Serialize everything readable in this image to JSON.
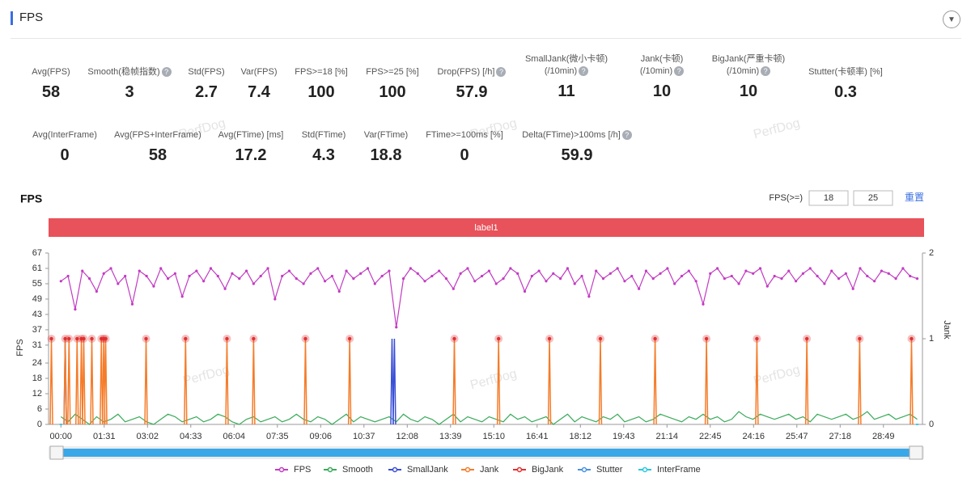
{
  "header": {
    "title": "FPS"
  },
  "watermark": "PerfDog",
  "metrics": [
    [
      {
        "label": "Avg(FPS)",
        "value": 58
      },
      {
        "label": "Smooth(稳帧指数)",
        "value": 3,
        "help": true
      },
      {
        "label": "Std(FPS)",
        "value": 2.7
      },
      {
        "label": "Var(FPS)",
        "value": 7.4
      },
      {
        "label": "FPS>=18 [%]",
        "value": 100
      },
      {
        "label": "FPS>=25 [%]",
        "value": 100
      },
      {
        "label": "Drop(FPS) [/h]",
        "value": 57.9,
        "help": true
      },
      {
        "label": "SmallJank(微小卡顿)\n(/10min)",
        "value": 11,
        "help": true
      },
      {
        "label": "Jank(卡顿)\n(/10min)",
        "value": 10,
        "help": true
      },
      {
        "label": "BigJank(严重卡顿)\n(/10min)",
        "value": 10,
        "help": true
      },
      {
        "label": "Stutter(卡顿率) [%]",
        "value": 0.3
      }
    ],
    [
      {
        "label": "Avg(InterFrame)",
        "value": 0
      },
      {
        "label": "Avg(FPS+InterFrame)",
        "value": 58
      },
      {
        "label": "Avg(FTime) [ms]",
        "value": 17.2
      },
      {
        "label": "Std(FTime)",
        "value": 4.3
      },
      {
        "label": "Var(FTime)",
        "value": 18.8
      },
      {
        "label": "FTime>=100ms [%]",
        "value": 0
      },
      {
        "label": "Delta(FTime)>100ms [/h]",
        "value": 59.9,
        "help": true
      }
    ]
  ],
  "chart_data": {
    "type": "line",
    "title": "FPS",
    "threshold_label": "FPS(>=)",
    "thresholds": [
      18,
      25
    ],
    "reset": "重置",
    "band_label": "label1",
    "y_label": "FPS",
    "y2_label": "Jank",
    "xlim": [
      -26,
      1811
    ],
    "xticks": [
      {
        "value": 0,
        "label": "00:00"
      },
      {
        "value": 91,
        "label": "01:31"
      },
      {
        "value": 182,
        "label": "03:02"
      },
      {
        "value": 273,
        "label": "04:33"
      },
      {
        "value": 364,
        "label": "06:04"
      },
      {
        "value": 455,
        "label": "07:35"
      },
      {
        "value": 546,
        "label": "09:06"
      },
      {
        "value": 637,
        "label": "10:37"
      },
      {
        "value": 728,
        "label": "12:08"
      },
      {
        "value": 819,
        "label": "13:39"
      },
      {
        "value": 910,
        "label": "15:10"
      },
      {
        "value": 1001,
        "label": "16:41"
      },
      {
        "value": 1092,
        "label": "18:12"
      },
      {
        "value": 1183,
        "label": "19:43"
      },
      {
        "value": 1274,
        "label": "21:14"
      },
      {
        "value": 1365,
        "label": "22:45"
      },
      {
        "value": 1456,
        "label": "24:16"
      },
      {
        "value": 1547,
        "label": "25:47"
      },
      {
        "value": 1638,
        "label": "27:18"
      },
      {
        "value": 1729,
        "label": "28:49"
      }
    ],
    "ylim": [
      0,
      67
    ],
    "yticks": [
      0,
      6,
      12,
      18,
      24,
      31,
      37,
      43,
      49,
      55,
      61,
      67
    ],
    "y2lim": [
      0,
      2
    ],
    "y2ticks": [
      0,
      1,
      2
    ],
    "x": [
      0,
      15,
      30,
      45,
      60,
      75,
      90,
      105,
      120,
      135,
      150,
      165,
      180,
      195,
      210,
      225,
      240,
      255,
      270,
      285,
      300,
      315,
      330,
      345,
      360,
      375,
      390,
      405,
      420,
      435,
      450,
      465,
      480,
      495,
      510,
      525,
      540,
      555,
      570,
      585,
      600,
      615,
      630,
      645,
      660,
      675,
      690,
      705,
      720,
      735,
      750,
      765,
      780,
      795,
      810,
      825,
      840,
      855,
      870,
      885,
      900,
      915,
      930,
      945,
      960,
      975,
      990,
      1005,
      1020,
      1035,
      1050,
      1065,
      1080,
      1095,
      1110,
      1125,
      1140,
      1155,
      1170,
      1185,
      1200,
      1215,
      1230,
      1245,
      1260,
      1275,
      1290,
      1305,
      1320,
      1335,
      1350,
      1365,
      1380,
      1395,
      1410,
      1425,
      1440,
      1455,
      1470,
      1485,
      1500,
      1515,
      1530,
      1545,
      1560,
      1575,
      1590,
      1605,
      1620,
      1635,
      1650,
      1665,
      1680,
      1695,
      1710,
      1725,
      1740,
      1755,
      1770,
      1785,
      1800
    ],
    "series": [
      {
        "name": "FPS",
        "color": "#c23bc2",
        "values": [
          56,
          58,
          45,
          60,
          57,
          52,
          59,
          61,
          55,
          58,
          47,
          60,
          58,
          54,
          61,
          57,
          59,
          50,
          58,
          60,
          56,
          61,
          58,
          53,
          59,
          57,
          60,
          55,
          58,
          61,
          49,
          58,
          60,
          57,
          55,
          59,
          61,
          56,
          58,
          52,
          60,
          57,
          59,
          61,
          55,
          58,
          60,
          38,
          57,
          61,
          59,
          56,
          58,
          60,
          57,
          53,
          59,
          61,
          56,
          58,
          60,
          55,
          57,
          61,
          59,
          52,
          58,
          60,
          56,
          59,
          57,
          61,
          55,
          58,
          50,
          60,
          57,
          59,
          61,
          56,
          58,
          53,
          60,
          57,
          59,
          61,
          55,
          58,
          60,
          56,
          47,
          59,
          61,
          57,
          58,
          55,
          60,
          59,
          61,
          54,
          58,
          57,
          60,
          56,
          59,
          61,
          58,
          55,
          60,
          57,
          59,
          53,
          61,
          58,
          56,
          60,
          59,
          57,
          61,
          58,
          57
        ]
      },
      {
        "name": "Smooth",
        "color": "#3aaa5a",
        "values": [
          3,
          1,
          4,
          2,
          0,
          3,
          1,
          2,
          4,
          1,
          2,
          3,
          1,
          0,
          2,
          4,
          3,
          1,
          2,
          3,
          1,
          2,
          4,
          3,
          1,
          0,
          2,
          3,
          1,
          2,
          3,
          1,
          2,
          4,
          2,
          1,
          3,
          2,
          0,
          2,
          4,
          1,
          3,
          2,
          1,
          2,
          3,
          1,
          4,
          2,
          1,
          3,
          2,
          0,
          2,
          4,
          1,
          3,
          2,
          1,
          3,
          2,
          1,
          4,
          2,
          3,
          1,
          2,
          3,
          0,
          2,
          4,
          1,
          3,
          2,
          1,
          3,
          2,
          4,
          1,
          2,
          3,
          1,
          2,
          4,
          3,
          2,
          1,
          3,
          2,
          4,
          2,
          3,
          1,
          2,
          5,
          3,
          2,
          4,
          3,
          2,
          3,
          4,
          2,
          3,
          1,
          4,
          3,
          2,
          3,
          4,
          2,
          3,
          5,
          2,
          3,
          4,
          2,
          3,
          4,
          2
        ]
      },
      {
        "name": "SmallJank",
        "color": "#3a4fd6",
        "axis": "y2",
        "x": [
          9,
          696,
          701
        ],
        "values": [
          1,
          1,
          1
        ]
      },
      {
        "name": "Jank",
        "color": "#f57c2a",
        "axis": "y2",
        "x": [
          -20,
          9,
          17,
          34,
          43,
          48,
          65,
          85,
          90,
          94,
          179,
          262,
          349,
          405,
          514,
          607,
          827,
          920,
          1027,
          1134,
          1249,
          1357,
          1463,
          1568,
          1679,
          1788
        ],
        "values": [
          1,
          1,
          1,
          1,
          1,
          1,
          1,
          1,
          1,
          1,
          1,
          1,
          1,
          1,
          1,
          1,
          1,
          1,
          1,
          1,
          1,
          1,
          1,
          1,
          1,
          1
        ]
      },
      {
        "name": "BigJank",
        "color": "#e03030",
        "axis": "y2",
        "x": [
          -20,
          9,
          17,
          34,
          43,
          48,
          65,
          85,
          90,
          94,
          179,
          262,
          349,
          405,
          514,
          607,
          827,
          920,
          1027,
          1134,
          1249,
          1357,
          1463,
          1568,
          1679,
          1788
        ],
        "values": [
          1,
          1,
          1,
          1,
          1,
          1,
          1,
          1,
          1,
          1,
          1,
          1,
          1,
          1,
          1,
          1,
          1,
          1,
          1,
          1,
          1,
          1,
          1,
          1,
          1,
          1
        ]
      },
      {
        "name": "Stutter",
        "color": "#4a90e2",
        "axis": "y2",
        "x": [
          0,
          1800
        ],
        "values": [
          0,
          0
        ]
      },
      {
        "name": "InterFrame",
        "color": "#2ac8e0",
        "axis": "y2",
        "x": [
          0,
          1800
        ],
        "values": [
          0,
          0
        ]
      }
    ]
  }
}
